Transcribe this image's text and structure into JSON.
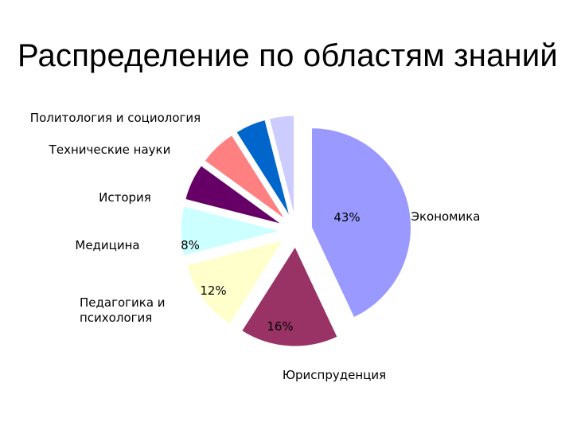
{
  "slide": {
    "title": "Распределение по областям знаний"
  },
  "chart_data": {
    "type": "pie",
    "title": "Распределение по областям знаний",
    "exploded": true,
    "slices": [
      {
        "label": "Экономика",
        "value": 43,
        "value_label": "43%",
        "color": "#9999FF"
      },
      {
        "label": "Юриспруденция",
        "value": 16,
        "value_label": "16%",
        "color": "#993366"
      },
      {
        "label": "Педагогика и психология",
        "value": 12,
        "value_label": "12%",
        "color": "#FFFFCC"
      },
      {
        "label": "Медицина",
        "value": 8,
        "value_label": "8%",
        "color": "#CCFFFF"
      },
      {
        "label": "История",
        "value": 6,
        "value_label": "",
        "color": "#660066"
      },
      {
        "label": "Технические науки",
        "value": 6,
        "value_label": "",
        "color": "#FF8080"
      },
      {
        "label": "Политология и социология",
        "value": 5,
        "value_label": "",
        "color": "#0066CC"
      },
      {
        "label": "",
        "value": 4,
        "value_label": "",
        "color": "#CCCCFF"
      }
    ]
  }
}
